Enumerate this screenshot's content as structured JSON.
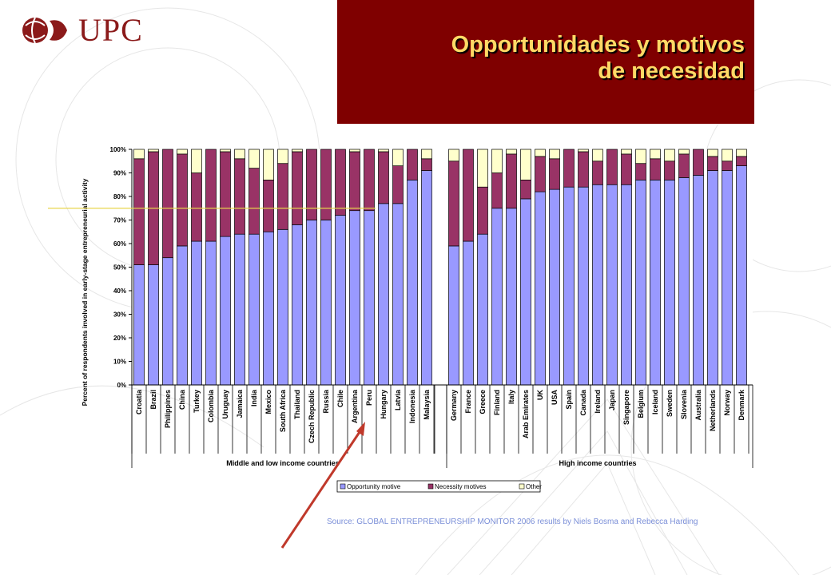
{
  "logo": {
    "text": "UPC"
  },
  "title": {
    "line1": "Opportunidades y motivos",
    "line2": "de necesidad"
  },
  "source": "Source: GLOBAL ENTREPRENEURSHIP MONITOR 2006 results  by Niels Bosma and Rebecca Harding",
  "colors": {
    "opportunity": "#9999ff",
    "necessity": "#993366",
    "other": "#ffffcc",
    "title_bg": "#7f0000",
    "title_text": "#ffd966",
    "arrow": "#c0392b",
    "reference_line": "#e8d44d"
  },
  "chart_data": {
    "type": "bar",
    "stacked": true,
    "ylabel": "Percent of respondents involved in early-stage entrepreneurial activity",
    "yticks": [
      "0%",
      "10%",
      "20%",
      "30%",
      "40%",
      "50%",
      "60%",
      "70%",
      "80%",
      "90%",
      "100%"
    ],
    "ylim": [
      0,
      100
    ],
    "reference_line": 75,
    "groups": [
      {
        "label": "Middle and low income countries",
        "categories": [
          "Croatia",
          "Brazil",
          "Philippines",
          "China",
          "Turkey",
          "Colombia",
          "Uruguay",
          "Jamaica",
          "India",
          "Mexico",
          "South Africa",
          "Thailand",
          "Czech Republic",
          "Russia",
          "Chile",
          "Argentina",
          "Peru",
          "Hungary",
          "Latvia",
          "Indonesia",
          "Malaysia"
        ],
        "series": [
          {
            "name": "Opportunity motive",
            "values": [
              51,
              51,
              54,
              59,
              61,
              61,
              63,
              64,
              64,
              65,
              66,
              68,
              70,
              70,
              72,
              74,
              74,
              77,
              77,
              87,
              91
            ]
          },
          {
            "name": "Necessity motives",
            "values": [
              45,
              48,
              46,
              39,
              29,
              39,
              36,
              32,
              28,
              22,
              28,
              31,
              30,
              30,
              28,
              25,
              26,
              22,
              16,
              13,
              5
            ]
          },
          {
            "name": "Other",
            "values": [
              4,
              1,
              0,
              2,
              10,
              0,
              1,
              4,
              8,
              13,
              6,
              1,
              0,
              0,
              0,
              1,
              0,
              1,
              7,
              0,
              4
            ]
          }
        ]
      },
      {
        "label": "High income countries",
        "categories": [
          "Germany",
          "France",
          "Greece",
          "Finland",
          "Italy",
          "Arab Emirates",
          "UK",
          "USA",
          "Spain",
          "Canada",
          "Ireland",
          "Japan",
          "Singapore",
          "Belgium",
          "Iceland",
          "Sweden",
          "Slovenia",
          "Australia",
          "Netherlands",
          "Norway",
          "Denmark"
        ],
        "series": [
          {
            "name": "Opportunity motive",
            "values": [
              59,
              61,
              64,
              75,
              75,
              79,
              82,
              83,
              84,
              84,
              85,
              85,
              85,
              87,
              87,
              87,
              88,
              89,
              91,
              91,
              93
            ]
          },
          {
            "name": "Necessity motives",
            "values": [
              36,
              39,
              20,
              15,
              23,
              8,
              15,
              13,
              16,
              15,
              10,
              15,
              13,
              7,
              9,
              8,
              10,
              11,
              6,
              4,
              4
            ]
          },
          {
            "name": "Other",
            "values": [
              5,
              0,
              16,
              10,
              2,
              13,
              3,
              4,
              0,
              1,
              5,
              0,
              2,
              6,
              4,
              5,
              2,
              0,
              3,
              5,
              3
            ]
          }
        ]
      }
    ],
    "legend": [
      "Opportunity motive",
      "Necessity motives",
      "Other"
    ],
    "legend_position": "bottom"
  }
}
